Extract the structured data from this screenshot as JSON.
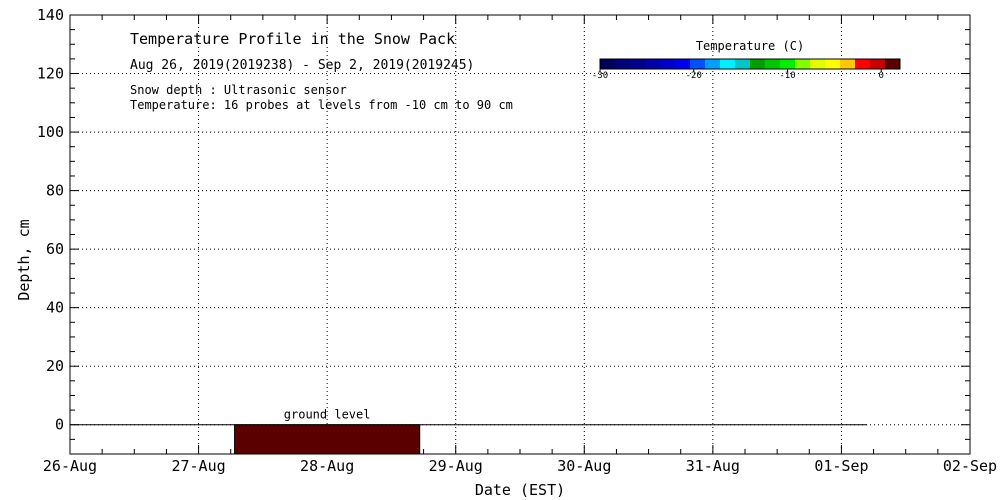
{
  "chart_data": {
    "type": "area",
    "title": "Temperature Profile in the Snow Pack",
    "subtitle": "Aug 26, 2019(2019238) - Sep  2, 2019(2019245)",
    "notes": [
      "Snow depth : Ultrasonic sensor",
      "Temperature: 16 probes at levels from -10 cm to 90 cm"
    ],
    "xlabel": "Date (EST)",
    "ylabel": "Depth, cm",
    "x_ticks": [
      "26-Aug",
      "27-Aug",
      "28-Aug",
      "29-Aug",
      "30-Aug",
      "31-Aug",
      "01-Sep",
      "02-Sep"
    ],
    "xlim_days": [
      0,
      7
    ],
    "y_ticks": [
      0,
      20,
      40,
      60,
      80,
      100,
      120,
      140
    ],
    "ylim": [
      -10,
      140
    ],
    "grid": true,
    "ground_level": {
      "label": "ground level",
      "y": 0,
      "x_start_day": 0,
      "x_end_day": 6.2
    },
    "temperature_block": {
      "x_start_day": 1.28,
      "x_end_day": 2.72,
      "y_bottom": -10,
      "y_top": 0,
      "color": "#5a0000"
    },
    "legend": {
      "title": "Temperature (C)",
      "placement": "top-right",
      "colors": [
        "#00005a",
        "#000078",
        "#00008c",
        "#0000aa",
        "#0000c8",
        "#0000f0",
        "#0050ff",
        "#00a0ff",
        "#00f0ff",
        "#00c8c8",
        "#00a000",
        "#00c800",
        "#00f000",
        "#80ff00",
        "#e0ff00",
        "#ffff00",
        "#ffc800",
        "#ff0000",
        "#c80000",
        "#5a0000"
      ],
      "range": [
        -30,
        2
      ],
      "ticks": [
        -30,
        -20,
        -10,
        0
      ],
      "tick_labels": [
        "-30",
        "-20",
        "-10",
        "0"
      ]
    }
  }
}
